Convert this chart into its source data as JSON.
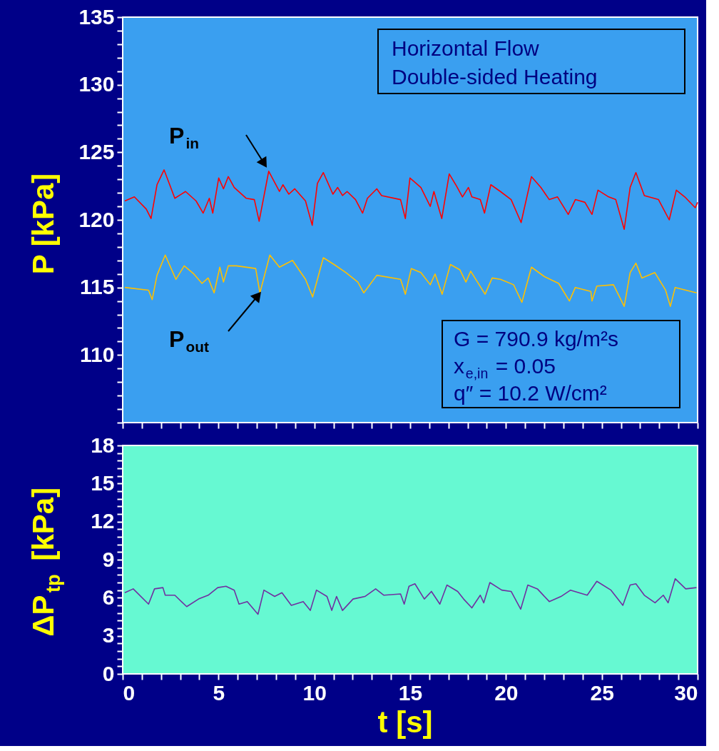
{
  "chart_data": [
    {
      "type": "line",
      "ylabel": "P [kPa]",
      "tick_labels": "y",
      "xlim": [
        0,
        30
      ],
      "xticks": [
        0,
        {
          "value": 1,
          "label": null
        },
        {
          "value": 2,
          "label": null
        },
        {
          "value": 3,
          "label": null
        },
        {
          "value": 4,
          "label": null
        },
        5,
        {
          "value": 6,
          "label": null
        },
        {
          "value": 7,
          "label": null
        },
        {
          "value": 8,
          "label": null
        },
        {
          "value": 9,
          "label": null
        },
        10,
        {
          "value": 11,
          "label": null
        },
        {
          "value": 12,
          "label": null
        },
        {
          "value": 13,
          "label": null
        },
        {
          "value": 14,
          "label": null
        },
        15,
        {
          "value": 16,
          "label": null
        },
        {
          "value": 17,
          "label": null
        },
        {
          "value": 18,
          "label": null
        },
        {
          "value": 19,
          "label": null
        },
        20,
        {
          "value": 21,
          "label": null
        },
        {
          "value": 22,
          "label": null
        },
        {
          "value": 23,
          "label": null
        },
        {
          "value": 24,
          "label": null
        },
        25,
        {
          "value": 26,
          "label": null
        },
        {
          "value": 27,
          "label": null
        },
        {
          "value": 28,
          "label": null
        },
        {
          "value": 29,
          "label": null
        },
        30
      ],
      "ylim": [
        105,
        135
      ],
      "yticks": [
        {
          "value": 105,
          "label": null
        },
        {
          "value": 106,
          "label": null
        },
        {
          "value": 107,
          "label": null
        },
        {
          "value": 108,
          "label": null
        },
        {
          "value": 109,
          "label": null
        },
        110,
        {
          "value": 111,
          "label": null
        },
        {
          "value": 112,
          "label": null
        },
        {
          "value": 113,
          "label": null
        },
        {
          "value": 114,
          "label": null
        },
        115,
        {
          "value": 116,
          "label": null
        },
        {
          "value": 117,
          "label": null
        },
        {
          "value": 118,
          "label": null
        },
        {
          "value": 119,
          "label": null
        },
        120,
        {
          "value": 121,
          "label": null
        },
        {
          "value": 122,
          "label": null
        },
        {
          "value": 123,
          "label": null
        },
        {
          "value": 124,
          "label": null
        },
        125,
        {
          "value": 126,
          "label": null
        },
        {
          "value": 127,
          "label": null
        },
        {
          "value": 128,
          "label": null
        },
        {
          "value": 129,
          "label": null
        },
        130,
        {
          "value": 131,
          "label": null
        },
        {
          "value": 132,
          "label": null
        },
        {
          "value": 133,
          "label": null
        },
        {
          "value": 134,
          "label": null
        },
        135
      ],
      "series": [
        {
          "name": "P$_{in}$",
          "color": "#ff0000",
          "x": [
            0.11,
            0.61,
            1.23,
            1.48,
            1.79,
            2.16,
            2.72,
            3.28,
            3.83,
            4.2,
            4.52,
            4.7,
            5.01,
            5.26,
            5.51,
            5.82,
            6.44,
            6.87,
            7.12,
            7.62,
            8.18,
            8.36,
            8.67,
            8.98,
            9.54,
            9.89,
            10.16,
            10.47,
            10.97,
            11.22,
            11.47,
            11.71,
            12.15,
            12.52,
            12.77,
            13.26,
            13.51,
            14.5,
            14.75,
            14.99,
            15.56,
            16.05,
            16.24,
            16.65,
            17.04,
            17.42,
            17.73,
            18.04,
            18.22,
            18.66,
            18.88,
            19.21,
            19.71,
            20.27,
            20.79,
            21.33,
            21.82,
            22.26,
            22.69,
            23.25,
            23.62,
            24.12,
            24.49,
            24.8,
            25.36,
            25.73,
            26.17,
            26.48,
            26.78,
            27.22,
            27.96,
            28.52,
            28.89,
            29.33,
            29.88,
            30
          ],
          "values": [
            121.4,
            121.7,
            120.8,
            120.1,
            122.6,
            123.7,
            121.6,
            122.1,
            121.4,
            120.5,
            121.6,
            120.5,
            123.1,
            122.3,
            123.2,
            122.4,
            121.6,
            121.5,
            119.9,
            123.6,
            122.1,
            122.6,
            121.9,
            122.3,
            121.4,
            119.6,
            122.7,
            123.5,
            121.9,
            122.4,
            121.8,
            122.1,
            121.5,
            120.5,
            121.6,
            122.3,
            121.8,
            121.5,
            120.1,
            123.1,
            122.4,
            121.0,
            122.1,
            120.1,
            123.4,
            122.5,
            121.7,
            122.4,
            121.7,
            121.5,
            120.5,
            122.6,
            122.1,
            121.5,
            119.8,
            123.2,
            122.4,
            121.5,
            121.7,
            120.4,
            121.5,
            121.3,
            120.4,
            122.2,
            121.7,
            121.5,
            119.3,
            122.4,
            123.5,
            121.8,
            121.5,
            120.0,
            122.2,
            121.7,
            120.9,
            121.3
          ]
        },
        {
          "name": "P$_{out}$",
          "color": "#ffc000",
          "x": [
            0.11,
            1.35,
            1.54,
            1.79,
            2.22,
            2.78,
            3.21,
            3.71,
            4.14,
            4.46,
            4.77,
            5.07,
            5.26,
            5.51,
            5.94,
            6.94,
            7.16,
            7.68,
            8.18,
            8.86,
            9.54,
            9.91,
            10.47,
            11.03,
            11.65,
            12.27,
            12.58,
            13.26,
            14.5,
            14.75,
            15.06,
            15.56,
            16.05,
            16.3,
            16.67,
            17.1,
            17.6,
            17.91,
            18.16,
            18.91,
            19.28,
            19.71,
            20.4,
            20.83,
            21.33,
            22.01,
            22.75,
            23.31,
            23.62,
            24.43,
            24.49,
            24.74,
            25.61,
            26.17,
            26.48,
            26.78,
            27.09,
            27.77,
            28.33,
            28.58,
            28.83,
            29.95
          ],
          "values": [
            115.0,
            114.8,
            114.1,
            115.9,
            117.4,
            115.6,
            116.6,
            116.0,
            115.3,
            115.7,
            114.6,
            116.5,
            115.4,
            116.6,
            116.6,
            116.4,
            114.6,
            117.4,
            116.5,
            117.0,
            115.6,
            114.3,
            117.2,
            116.7,
            116.1,
            115.4,
            114.6,
            115.9,
            115.6,
            114.5,
            116.4,
            116.1,
            115.2,
            116.0,
            114.5,
            116.7,
            116.3,
            115.4,
            116.2,
            114.5,
            115.7,
            115.6,
            115.2,
            113.9,
            116.5,
            115.8,
            115.3,
            114.0,
            115.0,
            114.7,
            114.0,
            115.1,
            115.2,
            113.6,
            116.1,
            116.8,
            115.7,
            116.1,
            114.8,
            113.6,
            115.0,
            114.6
          ]
        }
      ],
      "annotations": [
        "Horizontal Flow\nDouble-sided Heating",
        "G = 790.9 kg/m²s\nx$_{e,in}$ = 0.05\nq″ = 10.2 W/cm²"
      ]
    },
    {
      "type": "line",
      "ylabel": "ΔP$_{tp}$ [kPa]",
      "xlabel": "t [s]",
      "xlim": [
        0,
        30
      ],
      "xticks": [
        0,
        {
          "value": 1,
          "label": null
        },
        {
          "value": 2,
          "label": null
        },
        {
          "value": 3,
          "label": null
        },
        {
          "value": 4,
          "label": null
        },
        5,
        {
          "value": 6,
          "label": null
        },
        {
          "value": 7,
          "label": null
        },
        {
          "value": 8,
          "label": null
        },
        {
          "value": 9,
          "label": null
        },
        10,
        {
          "value": 11,
          "label": null
        },
        {
          "value": 12,
          "label": null
        },
        {
          "value": 13,
          "label": null
        },
        {
          "value": 14,
          "label": null
        },
        15,
        {
          "value": 16,
          "label": null
        },
        {
          "value": 17,
          "label": null
        },
        {
          "value": 18,
          "label": null
        },
        {
          "value": 19,
          "label": null
        },
        20,
        {
          "value": 21,
          "label": null
        },
        {
          "value": 22,
          "label": null
        },
        {
          "value": 23,
          "label": null
        },
        {
          "value": 24,
          "label": null
        },
        25,
        {
          "value": 26,
          "label": null
        },
        {
          "value": 27,
          "label": null
        },
        {
          "value": 28,
          "label": null
        },
        {
          "value": 29,
          "label": null
        },
        30
      ],
      "ylim": [
        0,
        18
      ],
      "yticks": [
        0,
        {
          "value": 0.6,
          "label": null
        },
        {
          "value": 1.2,
          "label": null
        },
        {
          "value": 1.8,
          "label": null
        },
        {
          "value": 2.4,
          "label": null
        },
        3,
        {
          "value": 3.6,
          "label": null
        },
        {
          "value": 4.2,
          "label": null
        },
        {
          "value": 4.8,
          "label": null
        },
        {
          "value": 5.4,
          "label": null
        },
        6,
        {
          "value": 6.6,
          "label": null
        },
        {
          "value": 7.2,
          "label": null
        },
        {
          "value": 7.8,
          "label": null
        },
        {
          "value": 8.4,
          "label": null
        },
        9,
        {
          "value": 9.6,
          "label": null
        },
        {
          "value": 10.2,
          "label": null
        },
        {
          "value": 10.8,
          "label": null
        },
        {
          "value": 11.4,
          "label": null
        },
        12,
        {
          "value": 12.6,
          "label": null
        },
        {
          "value": 13.2,
          "label": null
        },
        {
          "value": 13.8,
          "label": null
        },
        {
          "value": 14.4,
          "label": null
        },
        15,
        {
          "value": 15.6,
          "label": null
        },
        {
          "value": 16.2,
          "label": null
        },
        {
          "value": 16.8,
          "label": null
        },
        {
          "value": 17.4,
          "label": null
        },
        18
      ],
      "series": [
        {
          "color": "#7030a0",
          "x": [
            0.11,
            0.55,
            1.35,
            1.66,
            2.1,
            2.22,
            2.72,
            3.34,
            3.96,
            4.46,
            4.96,
            5.39,
            5.82,
            6.07,
            6.5,
            7.06,
            7.37,
            7.93,
            8.31,
            8.8,
            9.42,
            9.79,
            10.11,
            10.66,
            10.91,
            11.16,
            11.47,
            12.02,
            12.64,
            13.2,
            13.63,
            14.5,
            14.69,
            14.94,
            15.25,
            15.74,
            16.11,
            16.55,
            16.92,
            17.48,
            17.79,
            18.22,
            18.66,
            18.84,
            19.16,
            19.78,
            20.27,
            20.77,
            21.14,
            21.64,
            22.26,
            22.87,
            23.37,
            24.24,
            24.74,
            25.48,
            26.1,
            26.48,
            26.78,
            27.22,
            27.78,
            28.21,
            28.46,
            28.83,
            29.38,
            29.94
          ],
          "values": [
            6.4,
            6.7,
            5.5,
            6.7,
            6.8,
            6.2,
            6.2,
            5.3,
            5.9,
            6.2,
            6.8,
            6.9,
            6.6,
            5.5,
            5.7,
            4.7,
            6.6,
            6.1,
            6.4,
            5.4,
            5.7,
            5.0,
            6.6,
            6.1,
            5.0,
            6.1,
            5.0,
            5.9,
            6.1,
            6.7,
            6.2,
            6.3,
            5.5,
            6.9,
            7.1,
            5.9,
            6.5,
            5.5,
            7.0,
            6.5,
            5.9,
            5.2,
            6.2,
            5.6,
            7.2,
            6.6,
            6.5,
            5.1,
            7.0,
            6.7,
            5.7,
            6.1,
            6.6,
            6.2,
            7.3,
            6.6,
            5.4,
            7.0,
            7.1,
            6.2,
            5.6,
            6.2,
            5.6,
            7.5,
            6.7,
            6.8
          ]
        }
      ]
    }
  ]
}
